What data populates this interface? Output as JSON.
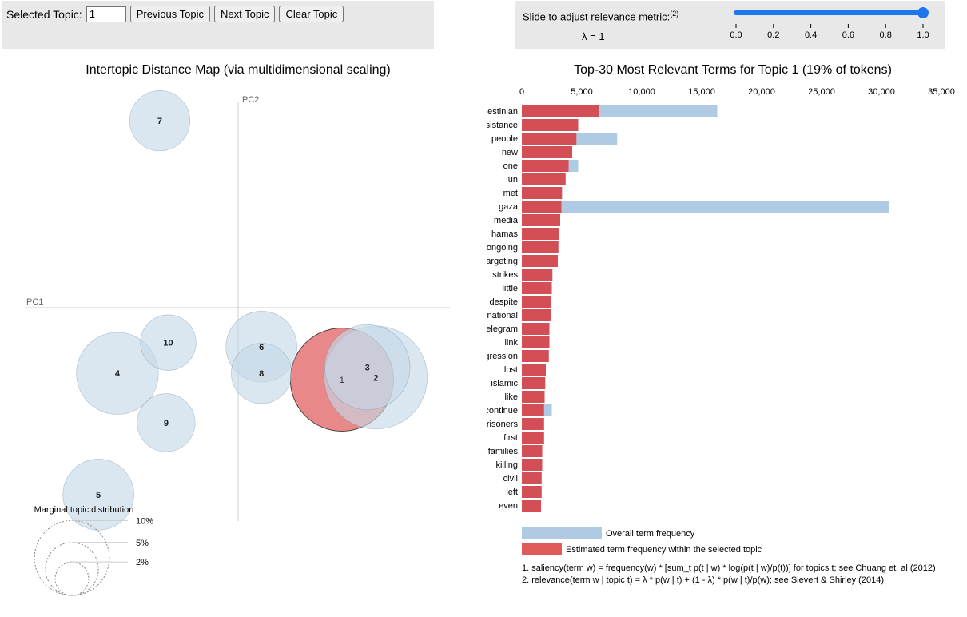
{
  "controls": {
    "selected_topic_label": "Selected Topic:",
    "selected_topic_value": "1",
    "prev_label": "Previous Topic",
    "next_label": "Next Topic",
    "clear_label": "Clear Topic",
    "slider_label": "Slide to adjust relevance metric:",
    "slider_footnote": "(2)",
    "lambda_text": "λ = 1",
    "lambda_value": 1.0,
    "slider_ticks": [
      "0.0",
      "0.2",
      "0.4",
      "0.6",
      "0.8",
      "1.0"
    ]
  },
  "colors": {
    "accent": "#1f77f0",
    "topic_circle": "#c5d8e7",
    "selected_circle": "#e05a5a",
    "overall_bar": "#afcae2",
    "estimated_bar": "#d44e55"
  },
  "chart_data": [
    {
      "type": "scatter",
      "title": "Intertopic Distance Map (via multidimensional scaling)",
      "xlabel": "PC1",
      "ylabel": "PC2",
      "xlim": [
        -1,
        1
      ],
      "ylim": [
        -1,
        1
      ],
      "selected": "1",
      "topics": [
        {
          "label": "1",
          "x": 0.49,
          "y": -0.35,
          "size": 19
        },
        {
          "label": "2",
          "x": 0.65,
          "y": -0.34,
          "size": 19
        },
        {
          "label": "3",
          "x": 0.61,
          "y": -0.29,
          "size": 13
        },
        {
          "label": "4",
          "x": -0.57,
          "y": -0.32,
          "size": 12
        },
        {
          "label": "5",
          "x": -0.66,
          "y": -0.91,
          "size": 9
        },
        {
          "label": "6",
          "x": 0.11,
          "y": -0.19,
          "size": 9
        },
        {
          "label": "7",
          "x": -0.37,
          "y": 0.91,
          "size": 6.5
        },
        {
          "label": "8",
          "x": 0.11,
          "y": -0.32,
          "size": 6.5
        },
        {
          "label": "9",
          "x": -0.34,
          "y": -0.56,
          "size": 6
        },
        {
          "label": "10",
          "x": -0.33,
          "y": -0.17,
          "size": 5.5
        }
      ],
      "legend": {
        "title": "Marginal topic distribution",
        "items": [
          {
            "label": "2%",
            "size": 2
          },
          {
            "label": "5%",
            "size": 5
          },
          {
            "label": "10%",
            "size": 10
          }
        ]
      }
    },
    {
      "type": "bar",
      "orientation": "horizontal",
      "title": "Top-30 Most Relevant Terms for Topic 1 (19% of tokens)",
      "xlim": [
        0,
        35000
      ],
      "xticks": [
        "0",
        "5,000",
        "10,000",
        "15,000",
        "20,000",
        "25,000",
        "30,000",
        "35,000"
      ],
      "categories": [
        "palestinian",
        "resistance",
        "people",
        "new",
        "one",
        "un",
        "met",
        "gaza",
        "media",
        "hamas",
        "ongoing",
        "targeting",
        "strikes",
        "little",
        "despite",
        "international",
        "telegram",
        "link",
        "aggression",
        "lost",
        "islamic",
        "like",
        "continue",
        "prisoners",
        "first",
        "families",
        "killing",
        "civil",
        "left",
        "even"
      ],
      "series": [
        {
          "name": "Overall term frequency",
          "values": [
            16300,
            4700,
            7950,
            4200,
            4700,
            3650,
            3350,
            30600,
            3200,
            3100,
            3050,
            3000,
            2550,
            2500,
            2450,
            2400,
            2300,
            2300,
            2250,
            2000,
            1950,
            1900,
            2500,
            1850,
            1850,
            1700,
            1700,
            1650,
            1650,
            1600
          ]
        },
        {
          "name": "Estimated term frequency within the selected topic",
          "values": [
            6450,
            4700,
            4550,
            4200,
            3900,
            3650,
            3350,
            3300,
            3200,
            3100,
            3050,
            3000,
            2550,
            2500,
            2450,
            2400,
            2300,
            2300,
            2250,
            2000,
            1950,
            1900,
            1850,
            1850,
            1850,
            1700,
            1700,
            1650,
            1650,
            1600
          ]
        }
      ],
      "footnotes": [
        "1. saliency(term w) = frequency(w) * [sum_t p(t | w) * log(p(t | w)/p(t))] for topics t; see Chuang et. al (2012)",
        "2. relevance(term w | topic t) = λ * p(w | t) + (1 - λ) * p(w | t)/p(w); see Sievert & Shirley (2014)"
      ]
    }
  ]
}
